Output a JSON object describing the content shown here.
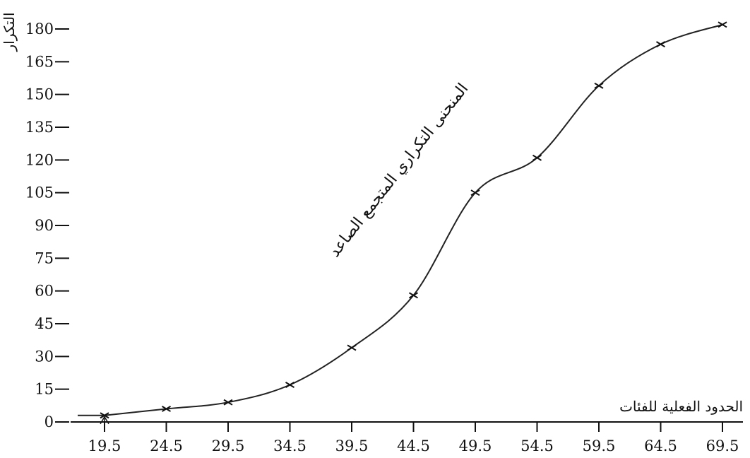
{
  "chart_data": {
    "type": "line",
    "ylabel": "التكرار",
    "xlabel": "الحدود الفعلية للفئات",
    "annotation": "المنحنى التكراري المتجمع الصاعد",
    "x_ticks": [
      "19.5",
      "24.5",
      "29.5",
      "34.5",
      "39.5",
      "44.5",
      "49.5",
      "54.5",
      "59.5",
      "64.5",
      "69.5"
    ],
    "y_ticks": [
      "0",
      "15",
      "30",
      "45",
      "60",
      "75",
      "90",
      "105",
      "120",
      "135",
      "150",
      "165",
      "180"
    ],
    "xlim": [
      16.5,
      71
    ],
    "ylim": [
      0,
      180
    ],
    "grid": false,
    "series": [
      {
        "x": [
          19.5,
          24.5,
          29.5,
          34.5,
          39.5,
          44.5,
          49.5,
          54.5,
          59.5,
          64.5,
          69.5
        ],
        "y": [
          3,
          6,
          9,
          17,
          34,
          58,
          105,
          121,
          154,
          173,
          182
        ]
      }
    ]
  }
}
